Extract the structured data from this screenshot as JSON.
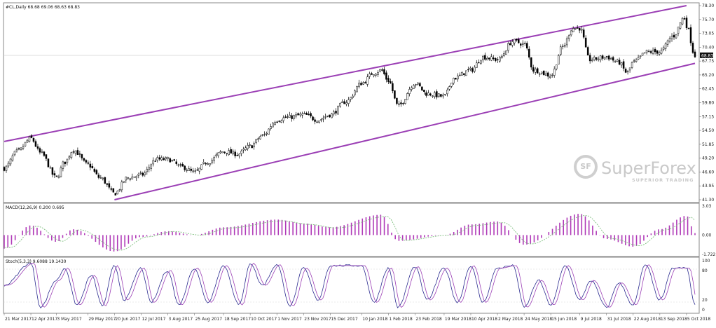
{
  "chart_data": [
    {
      "type": "candlestick",
      "title": "#CL,Daily  68.68 69.06 68.63 68.83",
      "ylim": [
        41.3,
        78.3
      ],
      "y_ticks": [
        "78.30",
        "75.70",
        "73.05",
        "70.40",
        "67.75",
        "65.20",
        "62.45",
        "59.80",
        "57.15",
        "54.50",
        "51.85",
        "49.20",
        "46.60",
        "43.95",
        "41.30"
      ],
      "last_price_label": "68.83",
      "grid": false,
      "channel": {
        "color": "#9b3fb5",
        "upper": [
          {
            "date": "21 Mar 2017",
            "value": 52.4
          },
          {
            "date": "5 Oct 2018",
            "value": 78.3
          }
        ],
        "lower": [
          {
            "date": "20 Jun 2017",
            "value": 41.3
          },
          {
            "date": "12 Oct 2018",
            "value": 67.3
          }
        ]
      },
      "x_tick_labels": [
        "21 Mar 2017",
        "12 Apr 2017",
        "3 May 2017",
        "29 May 2017",
        "20 Jun 2017",
        "12 Jul 2017",
        "3 Aug 2017",
        "25 Aug 2017",
        "18 Sep 2017",
        "10 Oct 2017",
        "1 Nov 2017",
        "23 Nov 2017",
        "15 Dec 2017",
        "10 Jan 2018",
        "1 Feb 2018",
        "23 Feb 2018",
        "19 Mar 2018",
        "10 Apr 2018",
        "2 May 2018",
        "24 May 2018",
        "15 Jun 2018",
        "9 Jul 2018",
        "31 Jul 2018",
        "22 Aug 2018",
        "13 Sep 2018",
        "5 Oct 2018"
      ],
      "close_path": [
        {
          "date": "21 Mar 2017",
          "value": 47.3
        },
        {
          "date": "1 Apr 2017",
          "value": 50.5
        },
        {
          "date": "12 Apr 2017",
          "value": 53.0
        },
        {
          "date": "20 Apr 2017",
          "value": 50.2
        },
        {
          "date": "3 May 2017",
          "value": 45.5
        },
        {
          "date": "10 May 2017",
          "value": 48.5
        },
        {
          "date": "17 May 2017",
          "value": 50.8
        },
        {
          "date": "29 May 2017",
          "value": 48.0
        },
        {
          "date": "8 Jun 2017",
          "value": 45.5
        },
        {
          "date": "20 Jun 2017",
          "value": 42.5
        },
        {
          "date": "1 Jul 2017",
          "value": 45.5
        },
        {
          "date": "12 Jul 2017",
          "value": 46.0
        },
        {
          "date": "25 Jul 2017",
          "value": 49.0
        },
        {
          "date": "3 Aug 2017",
          "value": 49.0
        },
        {
          "date": "15 Aug 2017",
          "value": 47.5
        },
        {
          "date": "25 Aug 2017",
          "value": 46.5
        },
        {
          "date": "5 Sep 2017",
          "value": 48.5
        },
        {
          "date": "18 Sep 2017",
          "value": 50.5
        },
        {
          "date": "30 Sep 2017",
          "value": 50.0
        },
        {
          "date": "10 Oct 2017",
          "value": 51.5
        },
        {
          "date": "20 Oct 2017",
          "value": 53.5
        },
        {
          "date": "1 Nov 2017",
          "value": 56.5
        },
        {
          "date": "10 Nov 2017",
          "value": 57.0
        },
        {
          "date": "23 Nov 2017",
          "value": 57.5
        },
        {
          "date": "5 Dec 2017",
          "value": 56.5
        },
        {
          "date": "15 Dec 2017",
          "value": 57.5
        },
        {
          "date": "28 Dec 2017",
          "value": 60.0
        },
        {
          "date": "10 Jan 2018",
          "value": 63.5
        },
        {
          "date": "20 Jan 2018",
          "value": 65.5
        },
        {
          "date": "26 Jan 2018",
          "value": 66.0
        },
        {
          "date": "1 Feb 2018",
          "value": 64.0
        },
        {
          "date": "9 Feb 2018",
          "value": 59.2
        },
        {
          "date": "23 Feb 2018",
          "value": 63.5
        },
        {
          "date": "5 Mar 2018",
          "value": 61.5
        },
        {
          "date": "19 Mar 2018",
          "value": 61.0
        },
        {
          "date": "27 Mar 2018",
          "value": 64.5
        },
        {
          "date": "10 Apr 2018",
          "value": 66.0
        },
        {
          "date": "20 Apr 2018",
          "value": 68.5
        },
        {
          "date": "2 May 2018",
          "value": 68.0
        },
        {
          "date": "15 May 2018",
          "value": 71.5
        },
        {
          "date": "24 May 2018",
          "value": 71.0
        },
        {
          "date": "1 Jun 2018",
          "value": 66.0
        },
        {
          "date": "15 Jun 2018",
          "value": 65.0
        },
        {
          "date": "25 Jun 2018",
          "value": 70.5
        },
        {
          "date": "3 Jul 2018",
          "value": 74.0
        },
        {
          "date": "9 Jul 2018",
          "value": 74.0
        },
        {
          "date": "17 Jul 2018",
          "value": 68.0
        },
        {
          "date": "31 Jul 2018",
          "value": 68.5
        },
        {
          "date": "10 Aug 2018",
          "value": 67.5
        },
        {
          "date": "17 Aug 2018",
          "value": 65.5
        },
        {
          "date": "22 Aug 2018",
          "value": 67.5
        },
        {
          "date": "3 Sep 2018",
          "value": 69.5
        },
        {
          "date": "13 Sep 2018",
          "value": 69.5
        },
        {
          "date": "24 Sep 2018",
          "value": 72.5
        },
        {
          "date": "3 Oct 2018",
          "value": 76.0
        },
        {
          "date": "5 Oct 2018",
          "value": 74.5
        },
        {
          "date": "12 Oct 2018",
          "value": 68.8
        }
      ]
    },
    {
      "type": "bar",
      "title": "MACD(12,26,9)  0.200 0.695",
      "ylim": [
        -2.0,
        3.0
      ],
      "y_ticks": [
        "3.03",
        "0.00",
        "-1.722"
      ],
      "color": "#b03ab8",
      "signal_color": "#7fbf7f",
      "bar_count": 190,
      "shape": [
        {
          "date": "21 Mar 2017",
          "value": -1.4
        },
        {
          "date": "12 Apr 2017",
          "value": 1.0
        },
        {
          "date": "3 May 2017",
          "value": -0.7
        },
        {
          "date": "17 May 2017",
          "value": 0.6
        },
        {
          "date": "20 Jun 2017",
          "value": -1.7
        },
        {
          "date": "12 Jul 2017",
          "value": -0.2
        },
        {
          "date": "3 Aug 2017",
          "value": 0.4
        },
        {
          "date": "25 Aug 2017",
          "value": 0.0
        },
        {
          "date": "18 Sep 2017",
          "value": 0.8
        },
        {
          "date": "1 Nov 2017",
          "value": 1.6
        },
        {
          "date": "23 Nov 2017",
          "value": 1.2
        },
        {
          "date": "15 Dec 2017",
          "value": 0.8
        },
        {
          "date": "26 Jan 2018",
          "value": 2.1
        },
        {
          "date": "9 Feb 2018",
          "value": -0.6
        },
        {
          "date": "19 Mar 2018",
          "value": 0.0
        },
        {
          "date": "10 Apr 2018",
          "value": 1.1
        },
        {
          "date": "2 May 2018",
          "value": 1.4
        },
        {
          "date": "24 May 2018",
          "value": -1.0
        },
        {
          "date": "9 Jul 2018",
          "value": 2.2
        },
        {
          "date": "31 Jul 2018",
          "value": -0.4
        },
        {
          "date": "22 Aug 2018",
          "value": -1.2
        },
        {
          "date": "13 Sep 2018",
          "value": 0.6
        },
        {
          "date": "5 Oct 2018",
          "value": 2.0
        },
        {
          "date": "12 Oct 2018",
          "value": 0.2
        }
      ]
    },
    {
      "type": "line",
      "title": "Stoch(5,3,3)  9.6088 19.1430",
      "ylim": [
        0,
        100
      ],
      "y_ticks": [
        "100",
        "80",
        "20",
        "0"
      ],
      "series": [
        {
          "color": "#2b2b8f"
        },
        {
          "color": "#9b3fb5"
        }
      ],
      "shape": [
        {
          "date": "21 Mar 2017",
          "value": 50
        },
        {
          "date": "12 Apr 2017",
          "value": 95
        },
        {
          "date": "20 Apr 2017",
          "value": 5
        },
        {
          "date": "3 May 2017",
          "value": 60
        },
        {
          "date": "10 May 2017",
          "value": 85
        },
        {
          "date": "20 May 2017",
          "value": 10
        },
        {
          "date": "1 Jun 2017",
          "value": 70
        },
        {
          "date": "10 Jun 2017",
          "value": 8
        },
        {
          "date": "20 Jun 2017",
          "value": 90
        },
        {
          "date": "28 Jun 2017",
          "value": 20
        },
        {
          "date": "12 Jul 2017",
          "value": 85
        },
        {
          "date": "20 Jul 2017",
          "value": 15
        },
        {
          "date": "3 Aug 2017",
          "value": 80
        },
        {
          "date": "12 Aug 2017",
          "value": 10
        },
        {
          "date": "25 Aug 2017",
          "value": 85
        },
        {
          "date": "5 Sep 2017",
          "value": 15
        },
        {
          "date": "18 Sep 2017",
          "value": 90
        },
        {
          "date": "1 Oct 2017",
          "value": 10
        },
        {
          "date": "10 Oct 2017",
          "value": 95
        },
        {
          "date": "20 Oct 2017",
          "value": 50
        },
        {
          "date": "1 Nov 2017",
          "value": 92
        },
        {
          "date": "12 Nov 2017",
          "value": 8
        },
        {
          "date": "23 Nov 2017",
          "value": 85
        },
        {
          "date": "5 Dec 2017",
          "value": 20
        },
        {
          "date": "15 Dec 2017",
          "value": 90
        },
        {
          "date": "10 Jan 2018",
          "value": 90
        },
        {
          "date": "20 Jan 2018",
          "value": 15
        },
        {
          "date": "1 Feb 2018",
          "value": 85
        },
        {
          "date": "9 Feb 2018",
          "value": 5
        },
        {
          "date": "23 Feb 2018",
          "value": 88
        },
        {
          "date": "5 Mar 2018",
          "value": 20
        },
        {
          "date": "19 Mar 2018",
          "value": 85
        },
        {
          "date": "30 Mar 2018",
          "value": 15
        },
        {
          "date": "10 Apr 2018",
          "value": 90
        },
        {
          "date": "20 Apr 2018",
          "value": 15
        },
        {
          "date": "2 May 2018",
          "value": 85
        },
        {
          "date": "15 May 2018",
          "value": 90
        },
        {
          "date": "24 May 2018",
          "value": 5
        },
        {
          "date": "5 Jun 2018",
          "value": 60
        },
        {
          "date": "15 Jun 2018",
          "value": 10
        },
        {
          "date": "27 Jun 2018",
          "value": 90
        },
        {
          "date": "9 Jul 2018",
          "value": 20
        },
        {
          "date": "18 Jul 2018",
          "value": 60
        },
        {
          "date": "31 Jul 2018",
          "value": 5
        },
        {
          "date": "10 Aug 2018",
          "value": 55
        },
        {
          "date": "22 Aug 2018",
          "value": 10
        },
        {
          "date": "1 Sep 2018",
          "value": 92
        },
        {
          "date": "13 Sep 2018",
          "value": 20
        },
        {
          "date": "24 Sep 2018",
          "value": 85
        },
        {
          "date": "5 Oct 2018",
          "value": 85
        },
        {
          "date": "12 Oct 2018",
          "value": 9.6
        }
      ]
    }
  ],
  "watermark": {
    "brand": "SuperForex",
    "tagline": "SUPERIOR TRADING",
    "logo_glyph": "SF"
  }
}
